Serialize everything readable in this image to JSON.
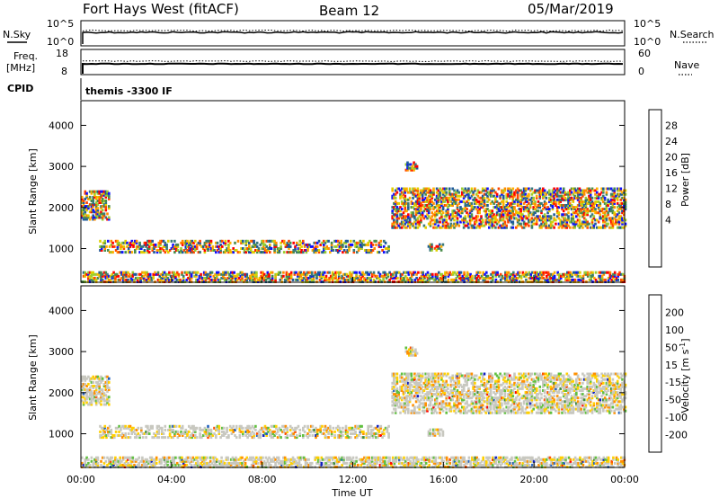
{
  "header": {
    "title": "Fort Hays West (fitACF)",
    "beam": "Beam 12",
    "date": "05/Mar/2019"
  },
  "strips": {
    "nsky": {
      "label": "N.Sky",
      "ticks": [
        "10^5",
        "10^0"
      ],
      "right_label": "N.Search",
      "right_ticks": [
        "10^5",
        "10^0"
      ]
    },
    "freq": {
      "label_line1": "Freq.",
      "label_line2": "[MHz]",
      "ticks": [
        "18",
        "8"
      ],
      "right_label": "Nave",
      "right_ticks": [
        "60",
        "0"
      ]
    },
    "cpid": {
      "label": "CPID",
      "text": "themis -3300 IF"
    }
  },
  "chart_data": [
    {
      "type": "heatmap",
      "name": "power",
      "xlabel": "",
      "ylabel": "Slant Range [km]",
      "x_ticks": [
        "00:00",
        "04:00",
        "08:00",
        "12:00",
        "16:00",
        "20:00",
        "00:00"
      ],
      "y_ticks": [
        "4000",
        "3000",
        "2000",
        "1000"
      ],
      "xlim": [
        "00:00",
        "24:00"
      ],
      "ylim": [
        180,
        4600
      ],
      "colorbar": {
        "label": "Power [dB]",
        "ticks": [
          "28",
          "24",
          "20",
          "16",
          "12",
          "8",
          "4"
        ],
        "colors": [
          "#ff0000",
          "#ff4500",
          "#ff8c00",
          "#ffb000",
          "#e0d000",
          "#9acd32",
          "#4a8c4a",
          "#3a7a7a",
          "#1e5a9a",
          "#1010ff"
        ]
      }
    },
    {
      "type": "heatmap",
      "name": "velocity",
      "xlabel": "Time UT",
      "ylabel": "Slant Range [km]",
      "x_ticks": [
        "00:00",
        "04:00",
        "08:00",
        "12:00",
        "16:00",
        "20:00",
        "00:00"
      ],
      "y_ticks": [
        "4000",
        "3000",
        "2000",
        "1000"
      ],
      "xlim": [
        "00:00",
        "24:00"
      ],
      "ylim": [
        180,
        4600
      ],
      "colorbar": {
        "label": "Velocity [m s",
        "label_sup": "-1",
        "label_end": "]",
        "ticks": [
          "200",
          "100",
          "50",
          "15",
          "-15",
          "-50",
          "-100",
          "-200"
        ],
        "colors": [
          "#1020c0",
          "#2060c0",
          "#3a8a3a",
          "#60c040",
          "#c8c8c0",
          "#ffd000",
          "#ff9000",
          "#ff5000",
          "#ff0000"
        ]
      }
    }
  ]
}
